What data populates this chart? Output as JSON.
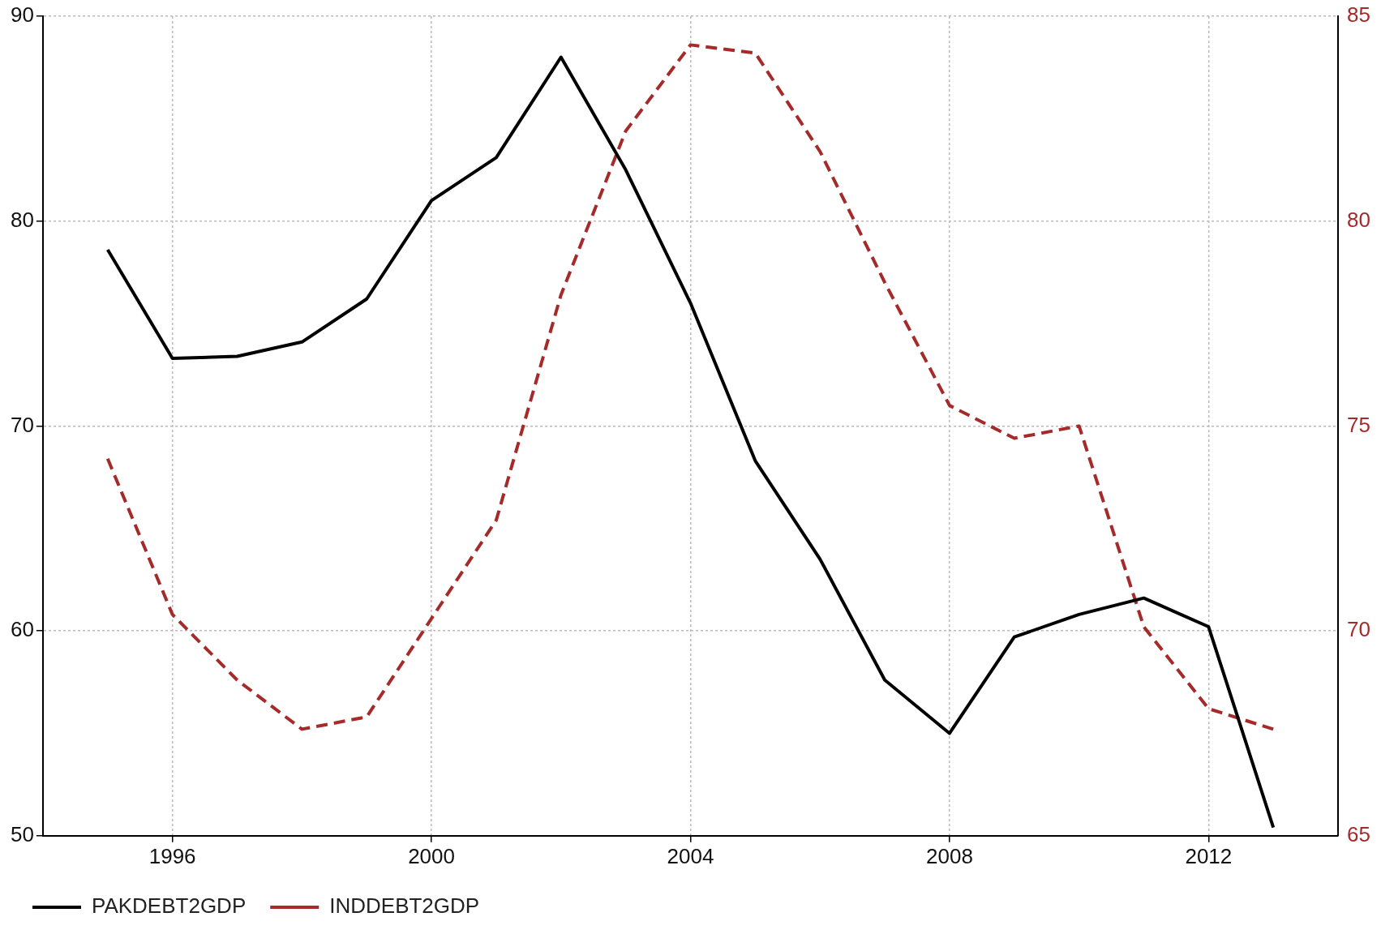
{
  "chart_data": {
    "type": "line",
    "x": [
      1995,
      1996,
      1997,
      1998,
      1999,
      2000,
      2001,
      2002,
      2003,
      2004,
      2005,
      2006,
      2007,
      2008,
      2009,
      2010,
      2011,
      2012,
      2013
    ],
    "series": [
      {
        "name": "PAKDEBT2GDP",
        "color": "#000000",
        "line_style": "solid",
        "values": [
          78.6,
          73.3,
          73.4,
          74.1,
          76.2,
          81.0,
          83.1,
          88.0,
          82.5,
          76.0,
          68.3,
          63.5,
          57.6,
          55.0,
          59.7,
          60.8,
          61.6,
          60.2,
          50.4
        ]
      },
      {
        "name": "INDDEBT2GDP",
        "color": "#a52a2a",
        "line_style": "dashed",
        "axis": "y2",
        "values": [
          74.2,
          70.4,
          68.8,
          67.6,
          67.9,
          70.3,
          72.7,
          78.2,
          82.2,
          84.3,
          84.1,
          81.7,
          78.5,
          75.5,
          74.7,
          75.0,
          70.1,
          68.1,
          67.6
        ]
      }
    ],
    "xlim": [
      1994,
      2014
    ],
    "xticks": [
      1996,
      2000,
      2004,
      2008,
      2012
    ],
    "ylim": [
      50,
      90
    ],
    "yticks": [
      50,
      60,
      70,
      80,
      90
    ],
    "y2lim": [
      65,
      85
    ],
    "y2ticks": [
      65,
      70,
      75,
      80,
      85
    ],
    "grid": true,
    "legend": "bottom left",
    "marker": "none"
  }
}
